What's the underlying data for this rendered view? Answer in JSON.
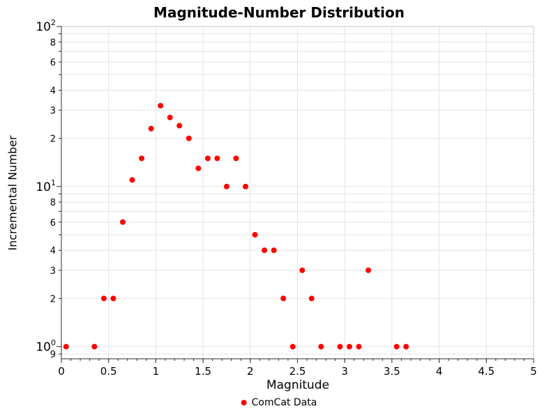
{
  "chart_data": {
    "type": "scatter",
    "title": "Magnitude-Number Distribution",
    "xlabel": "Magnitude",
    "ylabel": "Incremental Number",
    "xlim": [
      0,
      5
    ],
    "ylim": [
      0.84,
      100
    ],
    "yscale": "log",
    "grid": true,
    "x_ticks": [
      0,
      0.5,
      1,
      1.5,
      2,
      2.5,
      3,
      3.5,
      4,
      4.5,
      5
    ],
    "x_tick_labels": [
      "0",
      "0.5",
      "1",
      "1.5",
      "2",
      "2.5",
      "3",
      "3.5",
      "4",
      "4.5",
      "5"
    ],
    "y_tick_labels": [
      "10^2",
      "8",
      "6",
      "4",
      "3",
      "2",
      "10^1",
      "8",
      "6",
      "4",
      "3",
      "2",
      "10^0",
      "9"
    ],
    "y_major_exponents": [
      0,
      1,
      2
    ],
    "y_minor_labeled_multiples": [
      2,
      3,
      4,
      6,
      8
    ],
    "y_axis_end_label": "9",
    "legend": {
      "position": "bottom",
      "entries": [
        {
          "label": "ComCat Data",
          "color": "#ff0000",
          "marker": "circle"
        }
      ]
    },
    "colors": {
      "marker": "#ff0000",
      "grid": "#e4e4e4",
      "plot_border": "#c8c8c8",
      "axis": "#2b2b2b",
      "text": "#000000"
    },
    "series": [
      {
        "name": "ComCat Data",
        "color": "#ff0000",
        "points": [
          [
            0.05,
            1
          ],
          [
            0.35,
            1
          ],
          [
            0.45,
            2
          ],
          [
            0.55,
            2
          ],
          [
            0.65,
            6
          ],
          [
            0.75,
            11
          ],
          [
            0.85,
            15
          ],
          [
            0.95,
            23
          ],
          [
            1.05,
            32
          ],
          [
            1.15,
            27
          ],
          [
            1.25,
            24
          ],
          [
            1.35,
            20
          ],
          [
            1.45,
            13
          ],
          [
            1.55,
            15
          ],
          [
            1.65,
            15
          ],
          [
            1.75,
            10
          ],
          [
            1.85,
            15
          ],
          [
            1.95,
            10
          ],
          [
            2.05,
            5
          ],
          [
            2.15,
            4
          ],
          [
            2.25,
            4
          ],
          [
            2.35,
            2
          ],
          [
            2.45,
            1
          ],
          [
            2.55,
            3
          ],
          [
            2.65,
            2
          ],
          [
            2.75,
            1
          ],
          [
            2.95,
            1
          ],
          [
            3.05,
            1
          ],
          [
            3.15,
            1
          ],
          [
            3.25,
            3
          ],
          [
            3.55,
            1
          ],
          [
            3.65,
            1
          ]
        ]
      }
    ]
  }
}
